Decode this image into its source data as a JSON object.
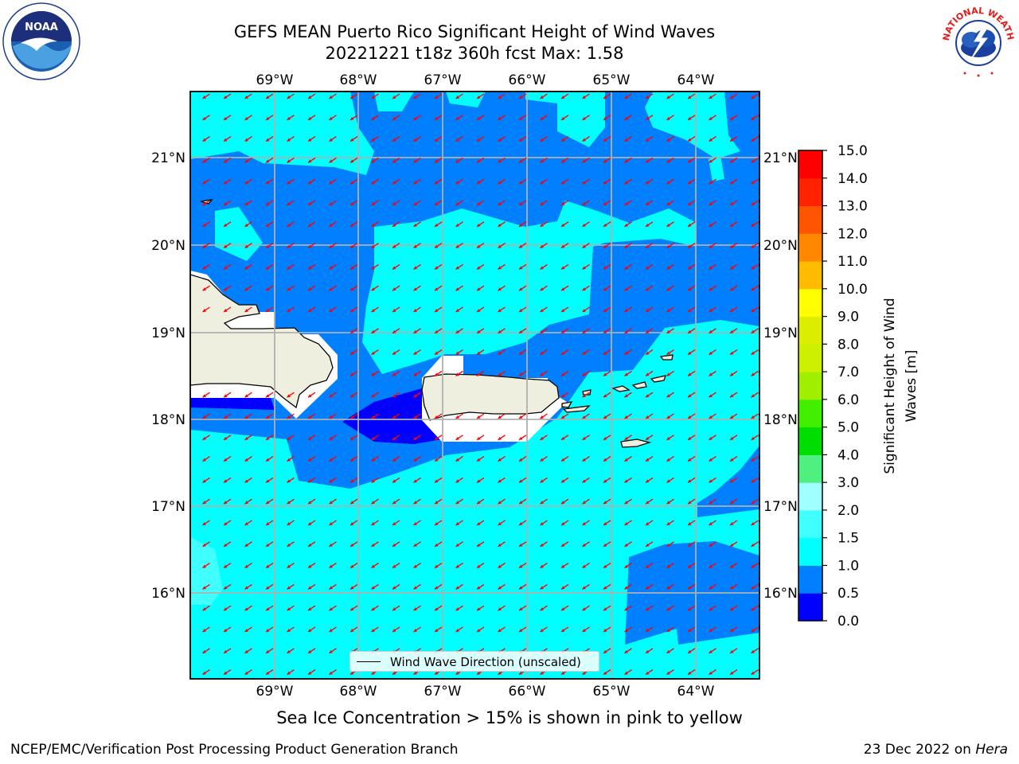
{
  "title": {
    "line1": "GEFS MEAN Puerto Rico Significant Height of Wind Waves",
    "line2": "20221221 t18z 360h fcst   Max: 1.58"
  },
  "map": {
    "lon_labels": [
      "69°W",
      "68°W",
      "67°W",
      "66°W",
      "65°W",
      "64°W"
    ],
    "lat_labels": [
      "21°N",
      "20°N",
      "19°N",
      "18°N",
      "17°N",
      "16°N"
    ],
    "land_color": "#efefdf",
    "arrow_color": "#ff0000",
    "wind_direction": "from northeast (arrows pointing southwest)"
  },
  "colorbar": {
    "label": "Significant Height of Wind Waves [m]",
    "label_line1": "Significant Height of Wind",
    "label_line2": "Waves [m]",
    "ticks": [
      "15.0",
      "14.0",
      "13.0",
      "12.0",
      "11.0",
      "10.0",
      "9.0",
      "8.0",
      "7.0",
      "6.0",
      "5.0",
      "4.0",
      "3.0",
      "2.0",
      "1.5",
      "1.0",
      "0.5",
      "0.0"
    ],
    "colors": [
      "#0000ff",
      "#0080ff",
      "#00ffff",
      "#40ffff",
      "#a0ffff",
      "#50f080",
      "#00dd00",
      "#40ee00",
      "#a0ee00",
      "#ccf000",
      "#dcee00",
      "#ffff00",
      "#ffbb00",
      "#ff8800",
      "#ff5500",
      "#ff2200",
      "#ff0000"
    ]
  },
  "legend": {
    "label": "Wind Wave Direction (unscaled)"
  },
  "footer": {
    "note": "Sea Ice Concentration > 15% is shown in pink to yellow",
    "credit_left": "NCEP/EMC/Verification Post Processing Product Generation Branch",
    "date": "23 Dec 2022 on ",
    "host": "Hera"
  },
  "logos": {
    "left": "noaa-logo",
    "right": "nws-logo",
    "nws_text": "NATIONAL WEATHER SERVICE"
  }
}
